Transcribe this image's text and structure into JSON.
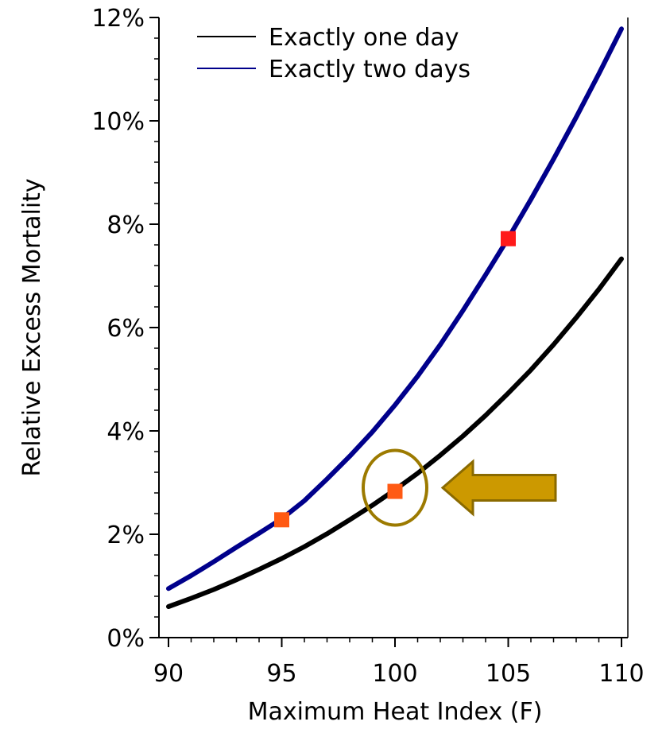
{
  "chart_data": {
    "type": "line",
    "xlabel": "Maximum Heat Index (F)",
    "ylabel": "Relative Excess Mortality",
    "xlim": [
      90,
      110
    ],
    "ylim": [
      0,
      12
    ],
    "x_ticks": [
      90,
      95,
      100,
      105,
      110
    ],
    "x_tick_labels": [
      "90",
      "95",
      "100",
      "105",
      "110"
    ],
    "y_ticks": [
      0,
      2,
      4,
      6,
      8,
      10,
      12
    ],
    "y_tick_labels": [
      "0%",
      "2%",
      "4%",
      "6%",
      "8%",
      "10%",
      "12%"
    ],
    "grid": false,
    "legend_position": "top",
    "series": [
      {
        "name": "Exactly one day",
        "color": "#000000",
        "x": [
          90,
          91,
          92,
          93,
          94,
          95,
          96,
          97,
          98,
          99,
          100,
          101,
          102,
          103,
          104,
          105,
          106,
          107,
          108,
          109,
          110
        ],
        "values": [
          0.6,
          0.76,
          0.93,
          1.12,
          1.32,
          1.53,
          1.76,
          2.01,
          2.28,
          2.56,
          2.86,
          3.18,
          3.53,
          3.9,
          4.3,
          4.73,
          5.18,
          5.67,
          6.19,
          6.74,
          7.33
        ]
      },
      {
        "name": "Exactly two days",
        "color": "#00008b",
        "x": [
          90,
          91,
          92,
          93,
          94,
          95,
          96,
          97,
          98,
          99,
          100,
          101,
          102,
          103,
          104,
          105,
          106,
          107,
          108,
          109,
          110
        ],
        "values": [
          0.95,
          1.2,
          1.47,
          1.75,
          2.02,
          2.3,
          2.65,
          3.07,
          3.51,
          3.98,
          4.5,
          5.06,
          5.67,
          6.33,
          7.02,
          7.73,
          8.48,
          9.26,
          10.07,
          10.91,
          11.78
        ]
      }
    ],
    "markers": [
      {
        "x": 95,
        "y": 2.28,
        "color": "#ff5a14"
      },
      {
        "x": 100,
        "y": 2.83,
        "color": "#ff5a14"
      },
      {
        "x": 105,
        "y": 7.72,
        "color": "#ff1a1a"
      }
    ],
    "annotations": {
      "circle": {
        "x": 100,
        "y": 2.9,
        "color": "#9c7a00"
      },
      "arrow": {
        "color": "#cc9900",
        "outline": "#8a6a00",
        "direction": "left"
      }
    }
  }
}
